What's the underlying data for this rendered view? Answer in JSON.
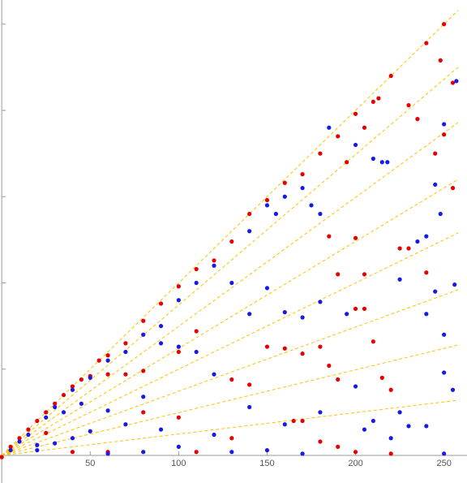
{
  "chart_data": {
    "type": "scatter",
    "xlim": [
      -1,
      263
    ],
    "ylim": [
      -16,
      264
    ],
    "xticks": [
      50,
      100,
      150,
      200,
      250
    ],
    "yticks": [
      50,
      100,
      150,
      200,
      250
    ],
    "guide_color": "#ffc000",
    "guides": [
      {
        "x": [
          0,
          258
        ],
        "y": [
          0,
          258
        ]
      },
      {
        "x": [
          0,
          258
        ],
        "y": [
          0,
          225
        ]
      },
      {
        "x": [
          0,
          258
        ],
        "y": [
          0,
          193
        ]
      },
      {
        "x": [
          0,
          258
        ],
        "y": [
          0,
          160
        ]
      },
      {
        "x": [
          0,
          258
        ],
        "y": [
          0,
          129
        ]
      },
      {
        "x": [
          0,
          258
        ],
        "y": [
          0,
          96
        ]
      },
      {
        "x": [
          0,
          258
        ],
        "y": [
          0,
          64
        ]
      },
      {
        "x": [
          0,
          258
        ],
        "y": [
          0,
          32
        ]
      }
    ],
    "series": [
      {
        "color": "#e60000",
        "x": [
          0,
          5,
          10,
          15,
          20,
          25,
          30,
          35,
          40,
          45,
          50,
          55,
          60,
          70,
          80,
          90,
          100,
          110,
          120,
          130,
          140,
          150,
          160,
          170,
          180,
          190,
          200,
          210,
          220,
          250,
          248,
          240,
          60,
          70,
          80,
          100,
          110,
          130,
          140,
          150,
          160,
          170,
          180,
          185,
          190,
          200,
          205,
          210,
          215,
          220,
          225,
          230,
          240,
          245,
          250,
          255,
          255,
          165,
          170,
          180,
          190,
          100,
          130,
          80,
          25,
          40,
          60,
          110,
          200,
          220,
          230,
          235,
          195,
          205,
          213,
          185,
          190,
          200,
          205
        ],
        "values": [
          -1,
          5,
          10,
          15,
          20,
          25,
          30,
          35,
          40,
          44,
          46,
          55,
          58,
          65,
          78,
          88,
          98,
          108,
          113,
          124,
          140,
          148,
          158,
          163,
          175,
          185,
          198,
          205,
          220,
          250,
          229,
          239,
          47,
          47,
          49,
          60,
          72,
          44,
          41,
          63,
          62,
          59,
          63,
          52,
          44,
          85,
          85,
          66,
          45,
          38,
          120,
          120,
          106,
          175,
          186,
          155,
          216,
          20,
          20,
          8,
          5,
          22,
          10,
          25,
          13,
          2,
          2,
          2,
          2,
          1,
          203,
          195,
          170,
          190,
          207,
          127,
          105,
          126,
          105
        ]
      },
      {
        "color": "#1a1ae6",
        "x": [
          5,
          10,
          15,
          20,
          25,
          30,
          35,
          40,
          45,
          50,
          60,
          70,
          80,
          90,
          100,
          110,
          120,
          130,
          140,
          150,
          155,
          160,
          170,
          175,
          180,
          185,
          200,
          210,
          215,
          218,
          225,
          235,
          240,
          250,
          257,
          245,
          248,
          245,
          240,
          250,
          255,
          250,
          256,
          240,
          230,
          225,
          210,
          205,
          200,
          195,
          180,
          170,
          160,
          150,
          140,
          120,
          110,
          100,
          90,
          80,
          70,
          60,
          50,
          40,
          30,
          20,
          90,
          120,
          140,
          160,
          180,
          100,
          130,
          150,
          170,
          220,
          250,
          80,
          60
        ],
        "values": [
          3,
          8,
          12,
          6,
          22,
          28,
          25,
          38,
          30,
          45,
          55,
          60,
          70,
          75,
          90,
          100,
          110,
          100,
          130,
          145,
          140,
          150,
          155,
          145,
          140,
          190,
          180,
          172,
          170,
          170,
          102,
          124,
          127,
          192,
          217,
          157,
          140,
          95,
          82,
          70,
          38,
          48,
          99,
          17,
          17,
          25,
          20,
          15,
          40,
          82,
          89,
          80,
          83,
          97,
          82,
          47,
          60,
          63,
          65,
          34,
          18,
          26,
          14,
          10,
          7,
          3,
          15,
          12,
          28,
          18,
          25,
          5,
          2,
          3,
          1,
          10,
          1,
          2,
          1
        ]
      }
    ]
  }
}
